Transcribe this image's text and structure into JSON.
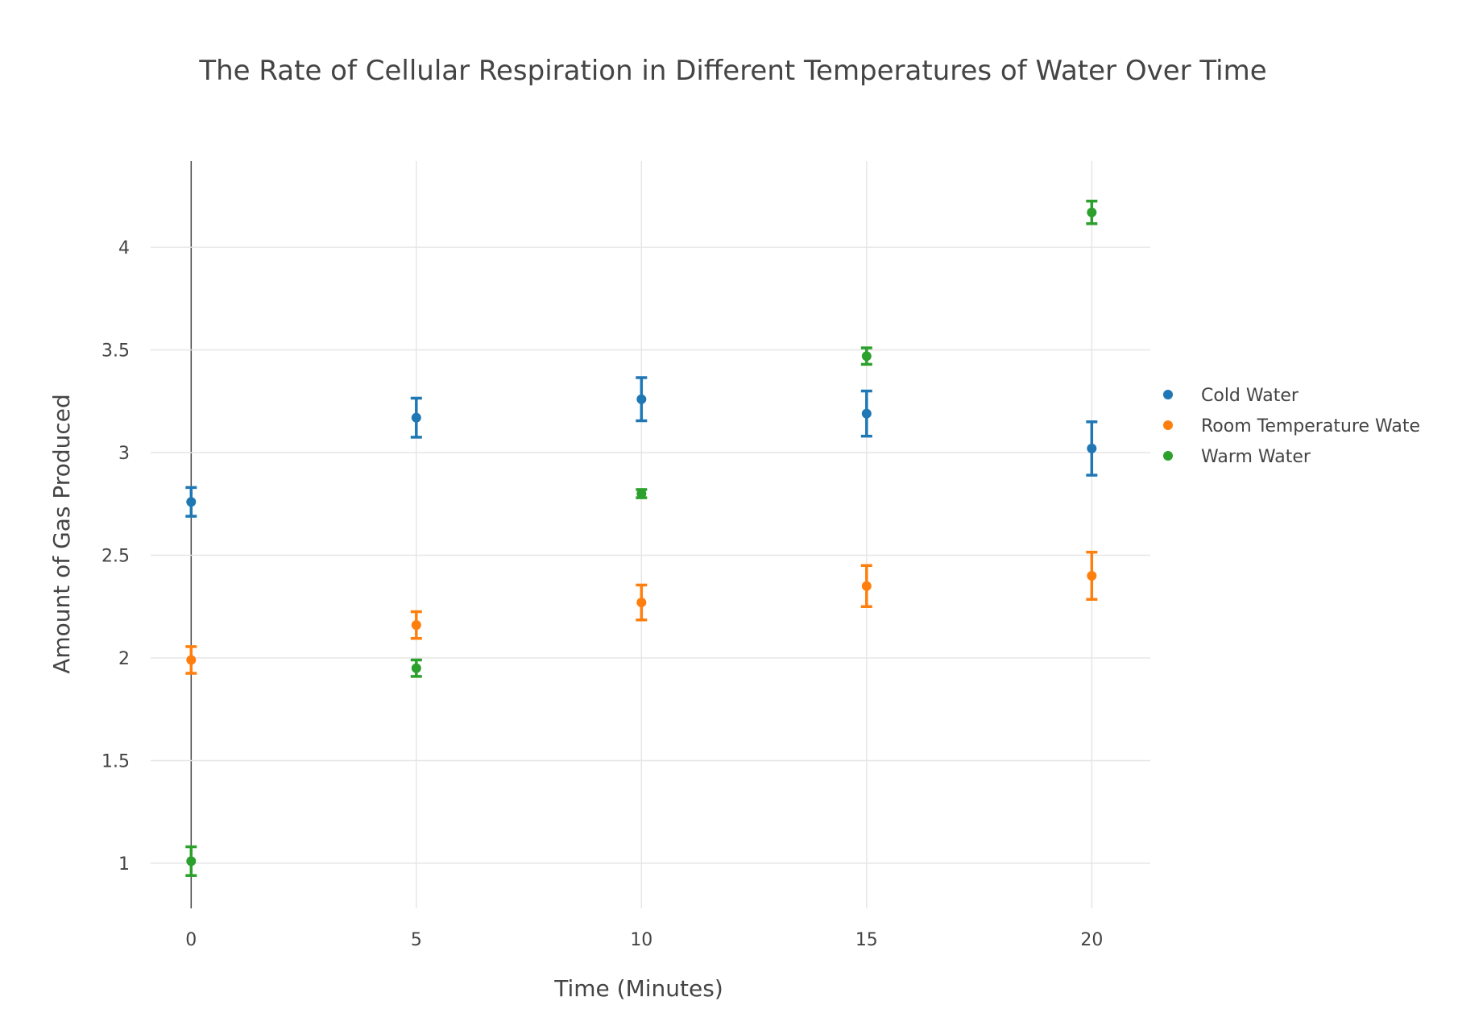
{
  "chart_data": {
    "type": "scatter",
    "title": "The Rate of Cellular Respiration in Different Temperatures of Water Over Time",
    "xlabel": "Time (Minutes)",
    "ylabel": "Amount of Gas Produced",
    "x": [
      0,
      5,
      10,
      15,
      20
    ],
    "xlim": [
      -0.9,
      21.3
    ],
    "ylim": [
      0.78,
      4.42
    ],
    "x_ticks": [
      0,
      5,
      10,
      15,
      20
    ],
    "x_tick_labels": [
      "0",
      "5",
      "10",
      "15",
      "20"
    ],
    "y_ticks": [
      1,
      1.5,
      2,
      2.5,
      3,
      3.5,
      4
    ],
    "y_tick_labels": [
      "1",
      "1.5",
      "2",
      "2.5",
      "3",
      "3.5",
      "4"
    ],
    "grid": true,
    "legend_position": "right",
    "series": [
      {
        "name": "Cold Water",
        "color": "#1f77b4",
        "values": [
          2.76,
          3.17,
          3.26,
          3.19,
          3.02
        ],
        "error": [
          0.07,
          0.095,
          0.105,
          0.11,
          0.13
        ]
      },
      {
        "name": "Room Temperature Wate",
        "color": "#ff7f0e",
        "values": [
          1.99,
          2.16,
          2.27,
          2.35,
          2.4
        ],
        "error": [
          0.065,
          0.065,
          0.085,
          0.1,
          0.115
        ]
      },
      {
        "name": "Warm Water",
        "color": "#2ca02c",
        "values": [
          1.01,
          1.95,
          2.8,
          3.47,
          4.17
        ],
        "error": [
          0.07,
          0.04,
          0.02,
          0.04,
          0.055
        ]
      }
    ]
  }
}
